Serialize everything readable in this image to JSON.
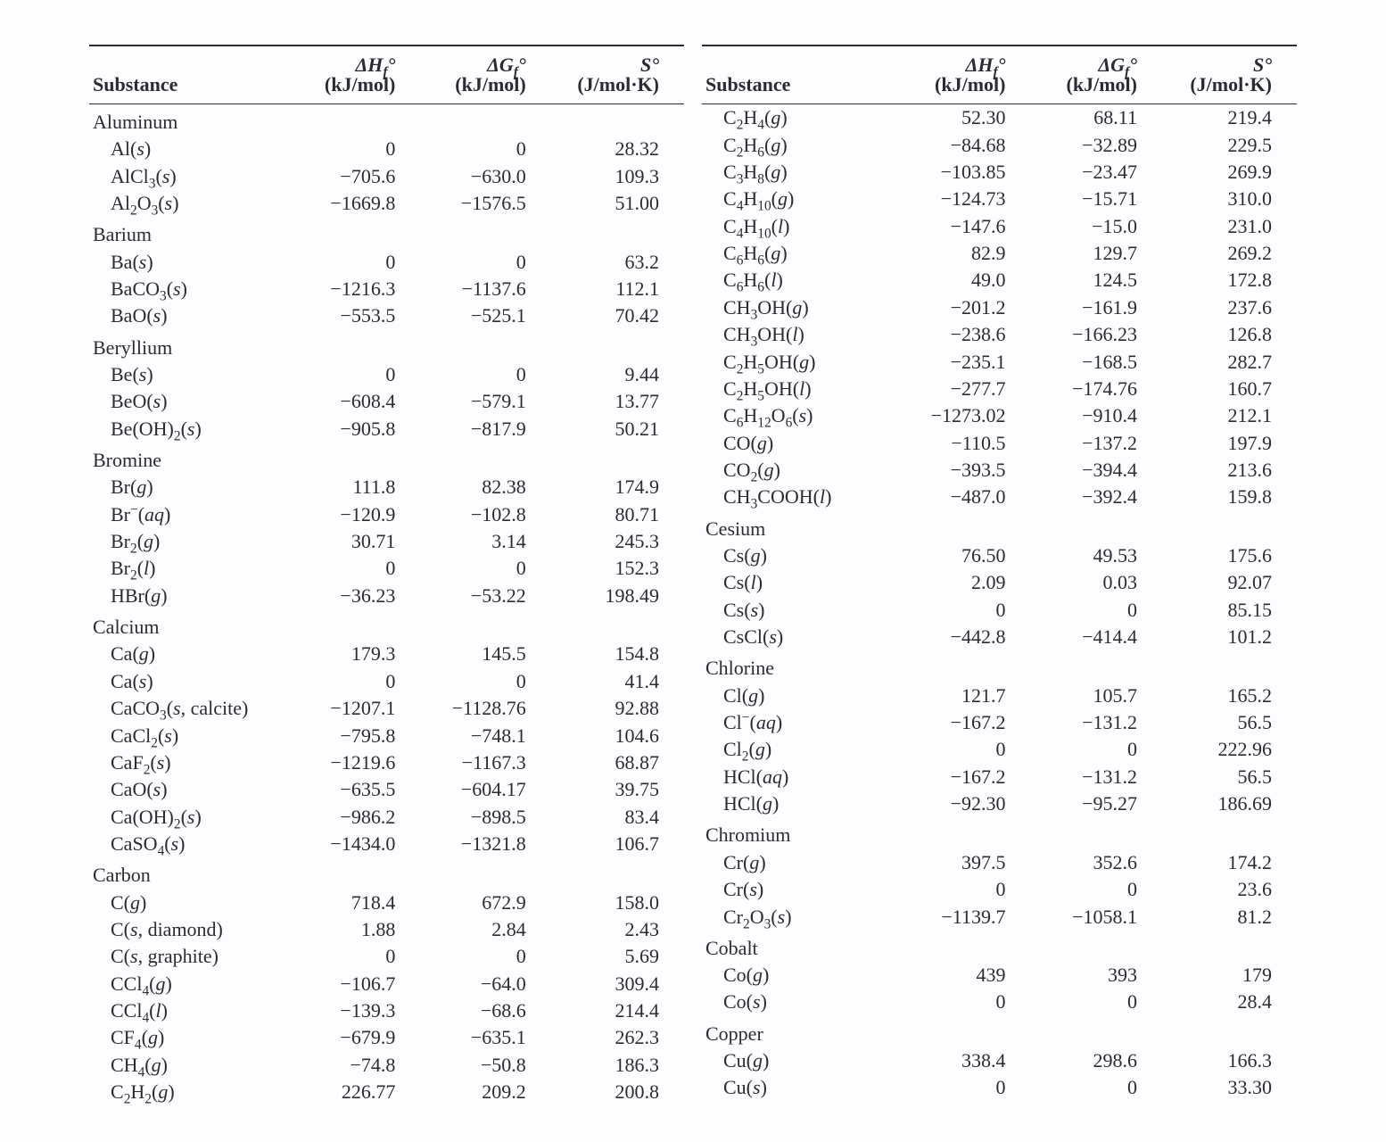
{
  "headers": {
    "substance": "Substance",
    "dHf_sym": "ΔH",
    "dGf_sym": "ΔG",
    "S_sym": "S°",
    "f_sub": "f",
    "deg": "°",
    "dHf_unit": "(kJ/mol)",
    "dGf_unit": "(kJ/mol)",
    "S_unit": "(J/mol·K)"
  },
  "left": [
    {
      "type": "group",
      "name": "Aluminum"
    },
    {
      "type": "row",
      "name": "Al(<i>s</i>)",
      "dH": "0",
      "dG": "0",
      "S": "28.32"
    },
    {
      "type": "row",
      "name": "AlCl<sub>3</sub>(<i>s</i>)",
      "dH": "−705.6",
      "dG": "−630.0",
      "S": "109.3"
    },
    {
      "type": "row",
      "name": "Al<sub>2</sub>O<sub>3</sub>(<i>s</i>)",
      "dH": "−1669.8",
      "dG": "−1576.5",
      "S": "51.00"
    },
    {
      "type": "group",
      "name": "Barium"
    },
    {
      "type": "row",
      "name": "Ba(<i>s</i>)",
      "dH": "0",
      "dG": "0",
      "S": "63.2"
    },
    {
      "type": "row",
      "name": "BaCO<sub>3</sub>(<i>s</i>)",
      "dH": "−1216.3",
      "dG": "−1137.6",
      "S": "112.1"
    },
    {
      "type": "row",
      "name": "BaO(<i>s</i>)",
      "dH": "−553.5",
      "dG": "−525.1",
      "S": "70.42"
    },
    {
      "type": "group",
      "name": "Beryllium"
    },
    {
      "type": "row",
      "name": "Be(<i>s</i>)",
      "dH": "0",
      "dG": "0",
      "S": "9.44"
    },
    {
      "type": "row",
      "name": "BeO(<i>s</i>)",
      "dH": "−608.4",
      "dG": "−579.1",
      "S": "13.77"
    },
    {
      "type": "row",
      "name": "Be(OH)<sub>2</sub>(<i>s</i>)",
      "dH": "−905.8",
      "dG": "−817.9",
      "S": "50.21"
    },
    {
      "type": "group",
      "name": "Bromine"
    },
    {
      "type": "row",
      "name": "Br(<i>g</i>)",
      "dH": "111.8",
      "dG": "82.38",
      "S": "174.9"
    },
    {
      "type": "row",
      "name": "Br<sup>−</sup>(<i>aq</i>)",
      "dH": "−120.9",
      "dG": "−102.8",
      "S": "80.71"
    },
    {
      "type": "row",
      "name": "Br<sub>2</sub>(<i>g</i>)",
      "dH": "30.71",
      "dG": "3.14",
      "S": "245.3"
    },
    {
      "type": "row",
      "name": "Br<sub>2</sub>(<i>l</i>)",
      "dH": "0",
      "dG": "0",
      "S": "152.3"
    },
    {
      "type": "row",
      "name": "HBr(<i>g</i>)",
      "dH": "−36.23",
      "dG": "−53.22",
      "S": "198.49"
    },
    {
      "type": "group",
      "name": "Calcium"
    },
    {
      "type": "row",
      "name": "Ca(<i>g</i>)",
      "dH": "179.3",
      "dG": "145.5",
      "S": "154.8"
    },
    {
      "type": "row",
      "name": "Ca(<i>s</i>)",
      "dH": "0",
      "dG": "0",
      "S": "41.4"
    },
    {
      "type": "row",
      "name": "CaCO<sub>3</sub>(<i>s</i>, calcite)",
      "dH": "−1207.1",
      "dG": "−1128.76",
      "S": "92.88"
    },
    {
      "type": "row",
      "name": "CaCl<sub>2</sub>(<i>s</i>)",
      "dH": "−795.8",
      "dG": "−748.1",
      "S": "104.6"
    },
    {
      "type": "row",
      "name": "CaF<sub>2</sub>(<i>s</i>)",
      "dH": "−1219.6",
      "dG": "−1167.3",
      "S": "68.87"
    },
    {
      "type": "row",
      "name": "CaO(<i>s</i>)",
      "dH": "−635.5",
      "dG": "−604.17",
      "S": "39.75"
    },
    {
      "type": "row",
      "name": "Ca(OH)<sub>2</sub>(<i>s</i>)",
      "dH": "−986.2",
      "dG": "−898.5",
      "S": "83.4"
    },
    {
      "type": "row",
      "name": "CaSO<sub>4</sub>(<i>s</i>)",
      "dH": "−1434.0",
      "dG": "−1321.8",
      "S": "106.7"
    },
    {
      "type": "group",
      "name": "Carbon"
    },
    {
      "type": "row",
      "name": "C(<i>g</i>)",
      "dH": "718.4",
      "dG": "672.9",
      "S": "158.0"
    },
    {
      "type": "row",
      "name": "C(<i>s</i>, diamond)",
      "dH": "1.88",
      "dG": "2.84",
      "S": "2.43"
    },
    {
      "type": "row",
      "name": "C(<i>s</i>, graphite)",
      "dH": "0",
      "dG": "0",
      "S": "5.69"
    },
    {
      "type": "row",
      "name": "CCl<sub>4</sub>(<i>g</i>)",
      "dH": "−106.7",
      "dG": "−64.0",
      "S": "309.4"
    },
    {
      "type": "row",
      "name": "CCl<sub>4</sub>(<i>l</i>)",
      "dH": "−139.3",
      "dG": "−68.6",
      "S": "214.4"
    },
    {
      "type": "row",
      "name": "CF<sub>4</sub>(<i>g</i>)",
      "dH": "−679.9",
      "dG": "−635.1",
      "S": "262.3"
    },
    {
      "type": "row",
      "name": "CH<sub>4</sub>(<i>g</i>)",
      "dH": "−74.8",
      "dG": "−50.8",
      "S": "186.3"
    },
    {
      "type": "row",
      "name": "C<sub>2</sub>H<sub>2</sub>(<i>g</i>)",
      "dH": "226.77",
      "dG": "209.2",
      "S": "200.8"
    }
  ],
  "right": [
    {
      "type": "row",
      "name": "C<sub>2</sub>H<sub>4</sub>(<i>g</i>)",
      "dH": "52.30",
      "dG": "68.11",
      "S": "219.4"
    },
    {
      "type": "row",
      "name": "C<sub>2</sub>H<sub>6</sub>(<i>g</i>)",
      "dH": "−84.68",
      "dG": "−32.89",
      "S": "229.5"
    },
    {
      "type": "row",
      "name": "C<sub>3</sub>H<sub>8</sub>(<i>g</i>)",
      "dH": "−103.85",
      "dG": "−23.47",
      "S": "269.9"
    },
    {
      "type": "row",
      "name": "C<sub>4</sub>H<sub>10</sub>(<i>g</i>)",
      "dH": "−124.73",
      "dG": "−15.71",
      "S": "310.0"
    },
    {
      "type": "row",
      "name": "C<sub>4</sub>H<sub>10</sub>(<i>l</i>)",
      "dH": "−147.6",
      "dG": "−15.0",
      "S": "231.0"
    },
    {
      "type": "row",
      "name": "C<sub>6</sub>H<sub>6</sub>(<i>g</i>)",
      "dH": "82.9",
      "dG": "129.7",
      "S": "269.2"
    },
    {
      "type": "row",
      "name": "C<sub>6</sub>H<sub>6</sub>(<i>l</i>)",
      "dH": "49.0",
      "dG": "124.5",
      "S": "172.8"
    },
    {
      "type": "row",
      "name": "CH<sub>3</sub>OH(<i>g</i>)",
      "dH": "−201.2",
      "dG": "−161.9",
      "S": "237.6"
    },
    {
      "type": "row",
      "name": "CH<sub>3</sub>OH(<i>l</i>)",
      "dH": "−238.6",
      "dG": "−166.23",
      "S": "126.8"
    },
    {
      "type": "row",
      "name": "C<sub>2</sub>H<sub>5</sub>OH(<i>g</i>)",
      "dH": "−235.1",
      "dG": "−168.5",
      "S": "282.7"
    },
    {
      "type": "row",
      "name": "C<sub>2</sub>H<sub>5</sub>OH(<i>l</i>)",
      "dH": "−277.7",
      "dG": "−174.76",
      "S": "160.7"
    },
    {
      "type": "row",
      "name": "C<sub>6</sub>H<sub>12</sub>O<sub>6</sub>(<i>s</i>)",
      "dH": "−1273.02",
      "dG": "−910.4",
      "S": "212.1"
    },
    {
      "type": "row",
      "name": "CO(<i>g</i>)",
      "dH": "−110.5",
      "dG": "−137.2",
      "S": "197.9"
    },
    {
      "type": "row",
      "name": "CO<sub>2</sub>(<i>g</i>)",
      "dH": "−393.5",
      "dG": "−394.4",
      "S": "213.6"
    },
    {
      "type": "row",
      "name": "CH<sub>3</sub>COOH(<i>l</i>)",
      "dH": "−487.0",
      "dG": "−392.4",
      "S": "159.8"
    },
    {
      "type": "group",
      "name": "Cesium"
    },
    {
      "type": "row",
      "name": "Cs(<i>g</i>)",
      "dH": "76.50",
      "dG": "49.53",
      "S": "175.6"
    },
    {
      "type": "row",
      "name": "Cs(<i>l</i>)",
      "dH": "2.09",
      "dG": "0.03",
      "S": "92.07"
    },
    {
      "type": "row",
      "name": "Cs(<i>s</i>)",
      "dH": "0",
      "dG": "0",
      "S": "85.15"
    },
    {
      "type": "row",
      "name": "CsCl(<i>s</i>)",
      "dH": "−442.8",
      "dG": "−414.4",
      "S": "101.2"
    },
    {
      "type": "group",
      "name": "Chlorine"
    },
    {
      "type": "row",
      "name": "Cl(<i>g</i>)",
      "dH": "121.7",
      "dG": "105.7",
      "S": "165.2"
    },
    {
      "type": "row",
      "name": "Cl<sup>−</sup>(<i>aq</i>)",
      "dH": "−167.2",
      "dG": "−131.2",
      "S": "56.5"
    },
    {
      "type": "row",
      "name": "Cl<sub>2</sub>(<i>g</i>)",
      "dH": "0",
      "dG": "0",
      "S": "222.96"
    },
    {
      "type": "row",
      "name": "HCl(<i>aq</i>)",
      "dH": "−167.2",
      "dG": "−131.2",
      "S": "56.5"
    },
    {
      "type": "row",
      "name": "HCl(<i>g</i>)",
      "dH": "−92.30",
      "dG": "−95.27",
      "S": "186.69"
    },
    {
      "type": "group",
      "name": "Chromium"
    },
    {
      "type": "row",
      "name": "Cr(<i>g</i>)",
      "dH": "397.5",
      "dG": "352.6",
      "S": "174.2"
    },
    {
      "type": "row",
      "name": "Cr(<i>s</i>)",
      "dH": "0",
      "dG": "0",
      "S": "23.6"
    },
    {
      "type": "row",
      "name": "Cr<sub>2</sub>O<sub>3</sub>(<i>s</i>)",
      "dH": "−1139.7",
      "dG": "−1058.1",
      "S": "81.2"
    },
    {
      "type": "group",
      "name": "Cobalt"
    },
    {
      "type": "row",
      "name": "Co(<i>g</i>)",
      "dH": "439",
      "dG": "393",
      "S": "179"
    },
    {
      "type": "row",
      "name": "Co(<i>s</i>)",
      "dH": "0",
      "dG": "0",
      "S": "28.4"
    },
    {
      "type": "group",
      "name": "Copper"
    },
    {
      "type": "row",
      "name": "Cu(<i>g</i>)",
      "dH": "338.4",
      "dG": "298.6",
      "S": "166.3"
    },
    {
      "type": "row",
      "name": "Cu(<i>s</i>)",
      "dH": "0",
      "dG": "0",
      "S": "33.30"
    }
  ]
}
